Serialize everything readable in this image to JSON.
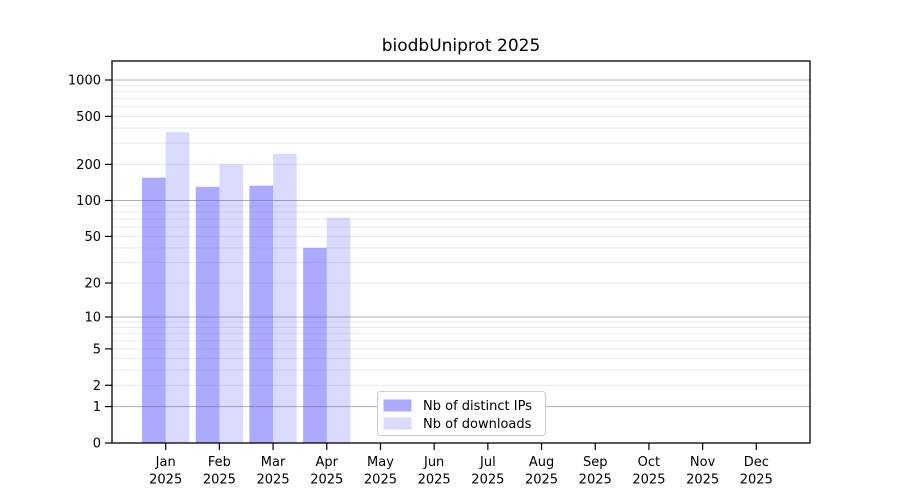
{
  "chart_data": {
    "type": "bar",
    "title": "biodbUniprot 2025",
    "xlabel": "",
    "ylabel": "",
    "categories": [
      "Jan 2025",
      "Feb 2025",
      "Mar 2025",
      "Apr 2025",
      "May 2025",
      "Jun 2025",
      "Jul 2025",
      "Aug 2025",
      "Sep 2025",
      "Oct 2025",
      "Nov 2025",
      "Dec 2025"
    ],
    "series": [
      {
        "name": "Nb of distinct IPs",
        "fill": "rgba(85,85,255,0.5)",
        "swatch_color": "#aaaaff",
        "values": [
          155,
          130,
          133,
          40,
          null,
          null,
          null,
          null,
          null,
          null,
          null,
          null
        ]
      },
      {
        "name": "Nb of downloads",
        "fill": "rgba(85,85,255,0.22)",
        "swatch_color": "#dadaff",
        "values": [
          370,
          200,
          245,
          72,
          null,
          null,
          null,
          null,
          null,
          null,
          null,
          null
        ]
      }
    ],
    "y_axis": {
      "scale": "log1p",
      "ticks": [
        1000,
        500,
        200,
        100,
        50,
        20,
        10,
        5,
        2,
        1,
        0
      ],
      "top_value": 1437
    },
    "x_axis": {
      "tick_year": "2025"
    },
    "grid": {
      "major_values": [
        1,
        10,
        100,
        1000
      ],
      "minor_values": [
        2,
        3,
        4,
        5,
        6,
        7,
        8,
        9,
        20,
        30,
        40,
        50,
        60,
        70,
        80,
        90,
        200,
        300,
        400,
        500,
        600,
        700,
        800,
        900
      ],
      "major_color": "#b0b0b0",
      "minor_color": "#e9e9e9"
    },
    "legend": {
      "position": "lower-center",
      "entries": [
        "Nb of distinct IPs",
        "Nb of downloads"
      ]
    },
    "colors": {
      "spine": "#000000",
      "legend_border": "#cccccc",
      "background": "#ffffff"
    }
  }
}
